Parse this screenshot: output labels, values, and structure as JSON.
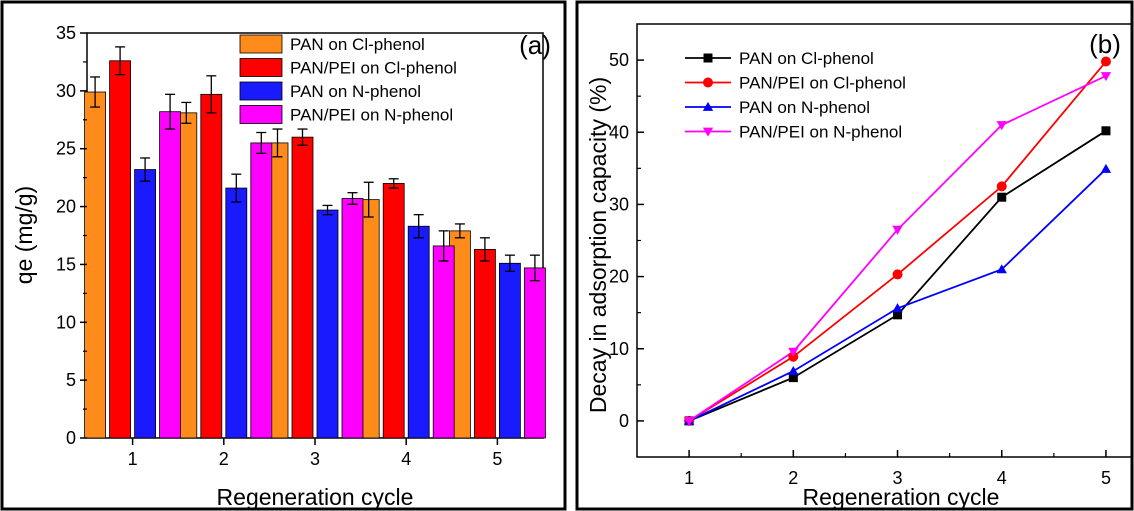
{
  "chart_data": [
    {
      "type": "bar",
      "panel_label": "(a)",
      "xlabel": "Regeneration cycle",
      "ylabel": "qe (mg/g)",
      "categories": [
        "1",
        "2",
        "3",
        "4",
        "5"
      ],
      "ylim": [
        0,
        35
      ],
      "yticks": [
        "0",
        "5",
        "10",
        "15",
        "20",
        "25",
        "30",
        "35"
      ],
      "legend_position": "top-right",
      "series": [
        {
          "name": "PAN on Cl-phenol",
          "color": "#FF8C1A",
          "values": [
            29.9,
            28.1,
            25.5,
            20.6,
            17.9
          ],
          "errors": [
            1.3,
            0.9,
            1.2,
            1.5,
            0.6
          ]
        },
        {
          "name": "PAN/PEI on Cl-phenol",
          "color": "#FF0000",
          "values": [
            32.6,
            29.7,
            26.0,
            22.0,
            16.3
          ],
          "errors": [
            1.2,
            1.6,
            0.7,
            0.4,
            1.0
          ]
        },
        {
          "name": "PAN on N-phenol",
          "color": "#1A1AFF",
          "values": [
            23.2,
            21.6,
            19.7,
            18.3,
            15.1
          ],
          "errors": [
            1.0,
            1.2,
            0.4,
            1.0,
            0.7
          ]
        },
        {
          "name": "PAN/PEI on N-phenol",
          "color": "#FF00FF",
          "values": [
            28.2,
            25.5,
            20.7,
            16.6,
            14.7
          ],
          "errors": [
            1.5,
            0.9,
            0.5,
            1.3,
            1.1
          ]
        }
      ]
    },
    {
      "type": "line",
      "panel_label": "(b)",
      "xlabel": "Regeneration cycle",
      "ylabel": "Decay in adsorption capacity (%)",
      "x": [
        1,
        2,
        3,
        4,
        5
      ],
      "xticks": [
        "1",
        "2",
        "3",
        "4",
        "5"
      ],
      "xlim": [
        0.5,
        5.25
      ],
      "ylim": [
        -5,
        55
      ],
      "yticks": [
        "0",
        "10",
        "20",
        "30",
        "40",
        "50"
      ],
      "legend_position": "top-left",
      "series": [
        {
          "name": "PAN on Cl-phenol",
          "color": "#000000",
          "marker": "square",
          "values": [
            0,
            6.0,
            14.7,
            31.0,
            40.2
          ]
        },
        {
          "name": "PAN/PEI on Cl-phenol",
          "color": "#FF0000",
          "marker": "circle",
          "values": [
            0,
            8.9,
            20.3,
            32.5,
            49.8
          ]
        },
        {
          "name": "PAN on N-phenol",
          "color": "#0000FF",
          "marker": "triangle-up",
          "values": [
            0,
            6.9,
            15.6,
            21.0,
            34.9
          ]
        },
        {
          "name": "PAN/PEI on N-phenol",
          "color": "#FF00FF",
          "marker": "triangle-down",
          "values": [
            0,
            9.6,
            26.5,
            41.0,
            47.8
          ]
        }
      ]
    }
  ]
}
